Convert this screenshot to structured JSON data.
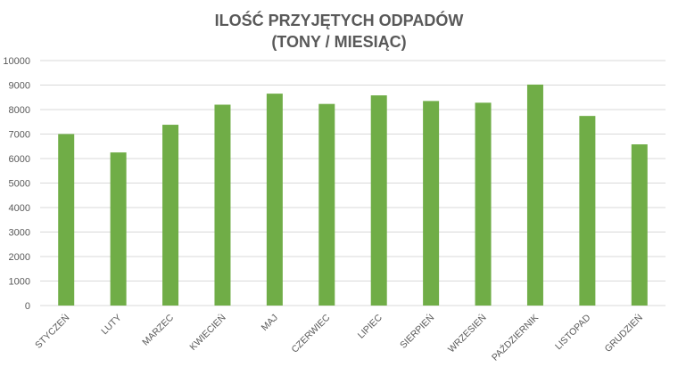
{
  "chart_data": {
    "type": "bar",
    "title_lines": [
      "ILOŚĆ PRZYJĘTYCH ODPADÓW",
      "(TONY / MIESIĄC)"
    ],
    "xlabel": "",
    "ylabel": "",
    "categories": [
      "STYCZEŃ",
      "LUTY",
      "MARZEC",
      "KWIECIEŃ",
      "MAJ",
      "CZERWIEC",
      "LIPIEC",
      "SIERPIEŃ",
      "WRZESIEŃ",
      "PAŹDZIERNIK",
      "LISTOPAD",
      "GRUDZIEŃ"
    ],
    "values": [
      7000,
      6250,
      7380,
      8200,
      8650,
      8230,
      8580,
      8350,
      8280,
      9020,
      7740,
      6580
    ],
    "ylim": [
      0,
      10000
    ],
    "yticks": [
      "0",
      "1000",
      "2000",
      "3000",
      "4000",
      "5000",
      "6000",
      "7000",
      "8000",
      "9000",
      "10000"
    ],
    "grid": true,
    "legend": "none",
    "bar_color": "#70AD47",
    "grid_color": "#D9D9D9",
    "text_color": "#595959"
  }
}
